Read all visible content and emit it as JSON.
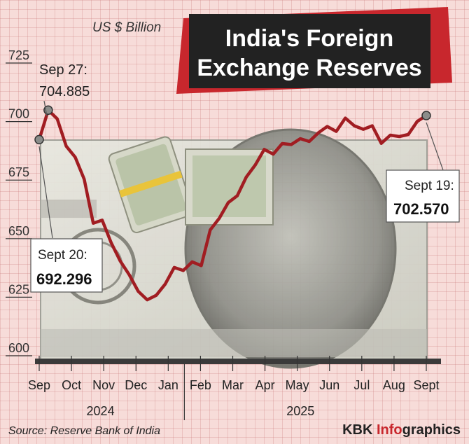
{
  "chart_data": {
    "type": "line",
    "title": "India's Foreign Exchange Reserves",
    "unit_label": "US $ Billion",
    "ylim": [
      600,
      725
    ],
    "y_ticks": [
      600,
      625,
      650,
      675,
      700,
      725
    ],
    "x_tick_labels": [
      "Sep",
      "Oct",
      "Nov",
      "Dec",
      "Jan",
      "Feb",
      "Mar",
      "Apr",
      "May",
      "Jun",
      "Jul",
      "Aug",
      "Sept"
    ],
    "year_labels": [
      "2024",
      "2025"
    ],
    "series": [
      {
        "values": [
          692.296,
          704.885,
          701.2,
          689.5,
          684.8,
          675.4,
          656.6,
          657.9,
          648.2,
          640.5,
          634.6,
          627.5,
          623.9,
          625.8,
          630.6,
          637.7,
          636.4,
          640.1,
          638.5,
          653.7,
          658.7,
          665.4,
          668.3,
          676.3,
          681.5,
          688.1,
          686.1,
          690.6,
          690.2,
          692.7,
          691.5,
          695.2,
          697.9,
          695.8,
          701.5,
          698.2,
          696.7,
          698.2,
          690.7,
          694.2,
          693.6,
          694.5,
          700.1,
          702.57
        ],
        "color": "#a11d22"
      }
    ],
    "annotations": [
      {
        "label": "Sep 27:",
        "value": "704.885"
      },
      {
        "label": "Sept 20:",
        "value": "692.296"
      },
      {
        "label": "Sept 19:",
        "value": "702.570"
      }
    ]
  },
  "source": "Source: Reserve Bank of India",
  "brand": {
    "part1": "KBK ",
    "part2": "Info",
    "part3": "graphics"
  },
  "colors": {
    "line": "#a11d22",
    "title_bg": "#222222",
    "title_accent": "#c8272d",
    "brand_red": "#c8272d"
  }
}
